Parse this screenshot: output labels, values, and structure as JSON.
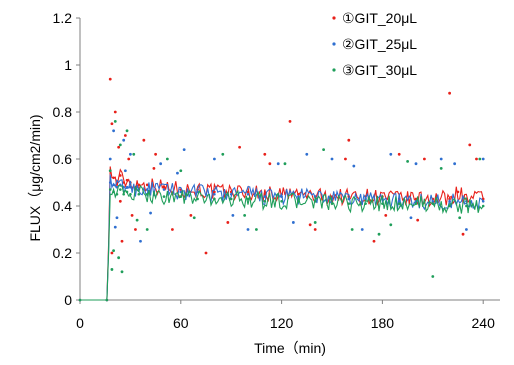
{
  "chart_data": {
    "type": "scatter",
    "title": "",
    "xlabel": "Time（min)",
    "ylabel": "FLUX（μg/cm2/min)",
    "xlim": [
      0,
      250
    ],
    "ylim": [
      0,
      1.2
    ],
    "x_ticks": [
      0,
      60,
      120,
      180,
      240
    ],
    "y_ticks": [
      0,
      0.2,
      0.4,
      0.6,
      0.8,
      1,
      1.2
    ],
    "x_tick_labels": [
      "0",
      "60",
      "120",
      "180",
      "240"
    ],
    "y_tick_labels": [
      "0",
      "0.2",
      "0.4",
      "0.6",
      "0.8",
      "1",
      "1.2"
    ],
    "grid": false,
    "legend_position": "top-right",
    "series": [
      {
        "name": "①GIT_20μL",
        "color": "#e8201a",
        "x": [
          0,
          16,
          18,
          20,
          22,
          24,
          26,
          28,
          30,
          35,
          40,
          50,
          60,
          70,
          80,
          90,
          100,
          110,
          120,
          130,
          140,
          150,
          160,
          170,
          180,
          190,
          200,
          210,
          220,
          225,
          230,
          240
        ],
        "y": [
          0,
          0,
          0.55,
          0.52,
          0.5,
          0.53,
          0.5,
          0.51,
          0.5,
          0.49,
          0.49,
          0.48,
          0.47,
          0.47,
          0.46,
          0.46,
          0.46,
          0.45,
          0.45,
          0.45,
          0.44,
          0.44,
          0.44,
          0.44,
          0.44,
          0.43,
          0.43,
          0.43,
          0.43,
          0.46,
          0.43,
          0.43
        ],
        "outliers": {
          "x": [
            18,
            19,
            21,
            23,
            25,
            27,
            29,
            33,
            38,
            45,
            55,
            75,
            95,
            110,
            125,
            140,
            160,
            175,
            190,
            205,
            220,
            228,
            236,
            19,
            24,
            31,
            44,
            66,
            88,
            113,
            137,
            158,
            182,
            201,
            232
          ],
          "y": [
            0.94,
            0.75,
            0.8,
            0.65,
            0.25,
            0.7,
            0.6,
            0.3,
            0.68,
            0.62,
            0.3,
            0.2,
            0.65,
            0.62,
            0.76,
            0.3,
            0.68,
            0.25,
            0.62,
            0.6,
            0.88,
            0.28,
            0.6,
            0.2,
            0.42,
            0.36,
            0.56,
            0.36,
            0.33,
            0.58,
            0.32,
            0.6,
            0.36,
            0.34,
            0.66
          ]
        }
      },
      {
        "name": "②GIT_25μL",
        "color": "#2f6fd0",
        "x": [
          0,
          16,
          18,
          20,
          22,
          24,
          26,
          28,
          30,
          35,
          40,
          50,
          60,
          70,
          80,
          90,
          100,
          110,
          120,
          130,
          140,
          150,
          160,
          170,
          180,
          190,
          200,
          210,
          220,
          230,
          240
        ],
        "y": [
          0,
          0,
          0.5,
          0.49,
          0.48,
          0.49,
          0.48,
          0.48,
          0.48,
          0.47,
          0.47,
          0.47,
          0.46,
          0.46,
          0.45,
          0.45,
          0.45,
          0.44,
          0.44,
          0.44,
          0.44,
          0.43,
          0.43,
          0.43,
          0.43,
          0.42,
          0.42,
          0.42,
          0.42,
          0.42,
          0.42
        ],
        "outliers": {
          "x": [
            18,
            20,
            22,
            26,
            30,
            36,
            48,
            62,
            80,
            100,
            118,
            135,
            150,
            168,
            185,
            200,
            215,
            230,
            240,
            21,
            27,
            42,
            58,
            91,
            127,
            163,
            197,
            223
          ],
          "y": [
            0.6,
            0.72,
            0.35,
            0.68,
            0.62,
            0.25,
            0.58,
            0.64,
            0.6,
            0.3,
            0.58,
            0.62,
            0.6,
            0.3,
            0.62,
            0.58,
            0.6,
            0.3,
            0.6,
            0.31,
            0.55,
            0.37,
            0.54,
            0.36,
            0.33,
            0.57,
            0.35,
            0.58
          ]
        }
      },
      {
        "name": "③GIT_30μL",
        "color": "#1f9e5a",
        "x": [
          0,
          16,
          18,
          20,
          22,
          24,
          26,
          28,
          30,
          35,
          40,
          50,
          60,
          70,
          80,
          90,
          100,
          110,
          120,
          130,
          140,
          150,
          160,
          170,
          180,
          190,
          200,
          210,
          220,
          230,
          240
        ],
        "y": [
          0,
          0,
          0.47,
          0.46,
          0.45,
          0.47,
          0.45,
          0.46,
          0.45,
          0.45,
          0.45,
          0.44,
          0.44,
          0.43,
          0.43,
          0.43,
          0.43,
          0.42,
          0.42,
          0.42,
          0.42,
          0.41,
          0.41,
          0.41,
          0.41,
          0.41,
          0.41,
          0.41,
          0.4,
          0.4,
          0.4
        ],
        "outliers": {
          "x": [
            18,
            19,
            21,
            23,
            24,
            25,
            28,
            32,
            40,
            52,
            68,
            85,
            105,
            122,
            145,
            162,
            178,
            195,
            210,
            226,
            238,
            20,
            34,
            60,
            98,
            140,
            185,
            215
          ],
          "y": [
            0.55,
            0.13,
            0.76,
            0.18,
            0.66,
            0.12,
            0.72,
            0.62,
            0.3,
            0.6,
            0.35,
            0.62,
            0.3,
            0.58,
            0.64,
            0.3,
            0.28,
            0.59,
            0.1,
            0.35,
            0.6,
            0.21,
            0.34,
            0.55,
            0.36,
            0.33,
            0.32,
            0.56
          ]
        }
      }
    ]
  }
}
